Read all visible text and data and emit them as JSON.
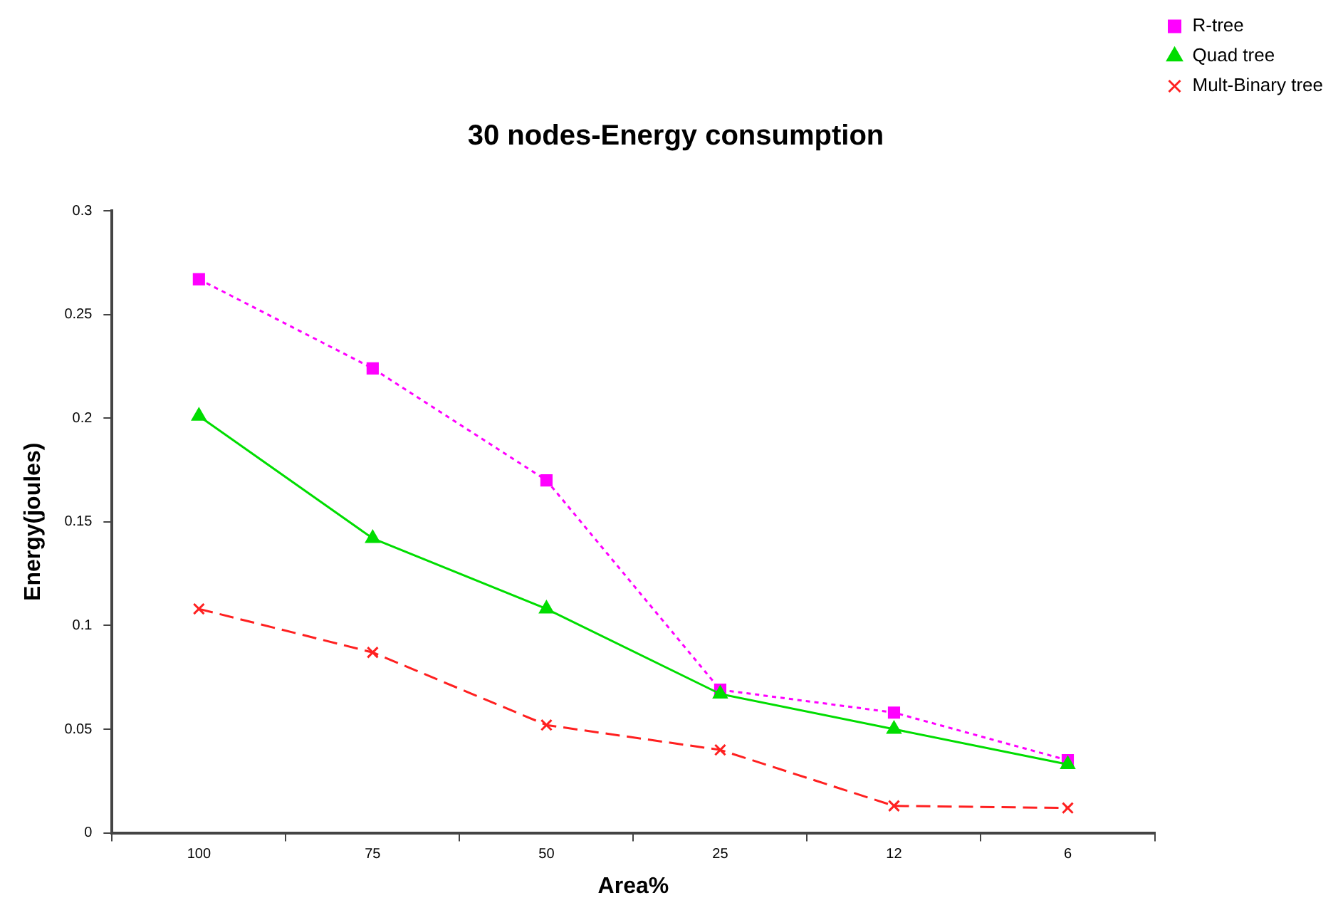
{
  "chart_data": {
    "type": "line",
    "title": "30 nodes-Energy consumption",
    "xlabel": "Area%",
    "ylabel": "Energy(joules)",
    "categories": [
      "100",
      "75",
      "50",
      "25",
      "12",
      "6"
    ],
    "ylim": [
      0,
      0.3
    ],
    "yticks": [
      0,
      0.05,
      0.1,
      0.15,
      0.2,
      0.25,
      0.3
    ],
    "grid": false,
    "legend": "top right",
    "series": [
      {
        "name": "R-tree",
        "color": "#ff00ff",
        "marker": "square",
        "line_style": "dotted",
        "values": [
          0.267,
          0.224,
          0.17,
          0.069,
          0.058,
          0.035
        ]
      },
      {
        "name": "Quad tree",
        "color": "#00dd00",
        "marker": "triangle",
        "line_style": "solid",
        "values": [
          0.201,
          0.142,
          0.108,
          0.067,
          0.05,
          0.033
        ]
      },
      {
        "name": "Mult-Binary tree",
        "color": "#ff2020",
        "marker": "cross",
        "line_style": "dashed",
        "values": [
          0.108,
          0.087,
          0.052,
          0.04,
          0.013,
          0.012
        ]
      }
    ]
  }
}
